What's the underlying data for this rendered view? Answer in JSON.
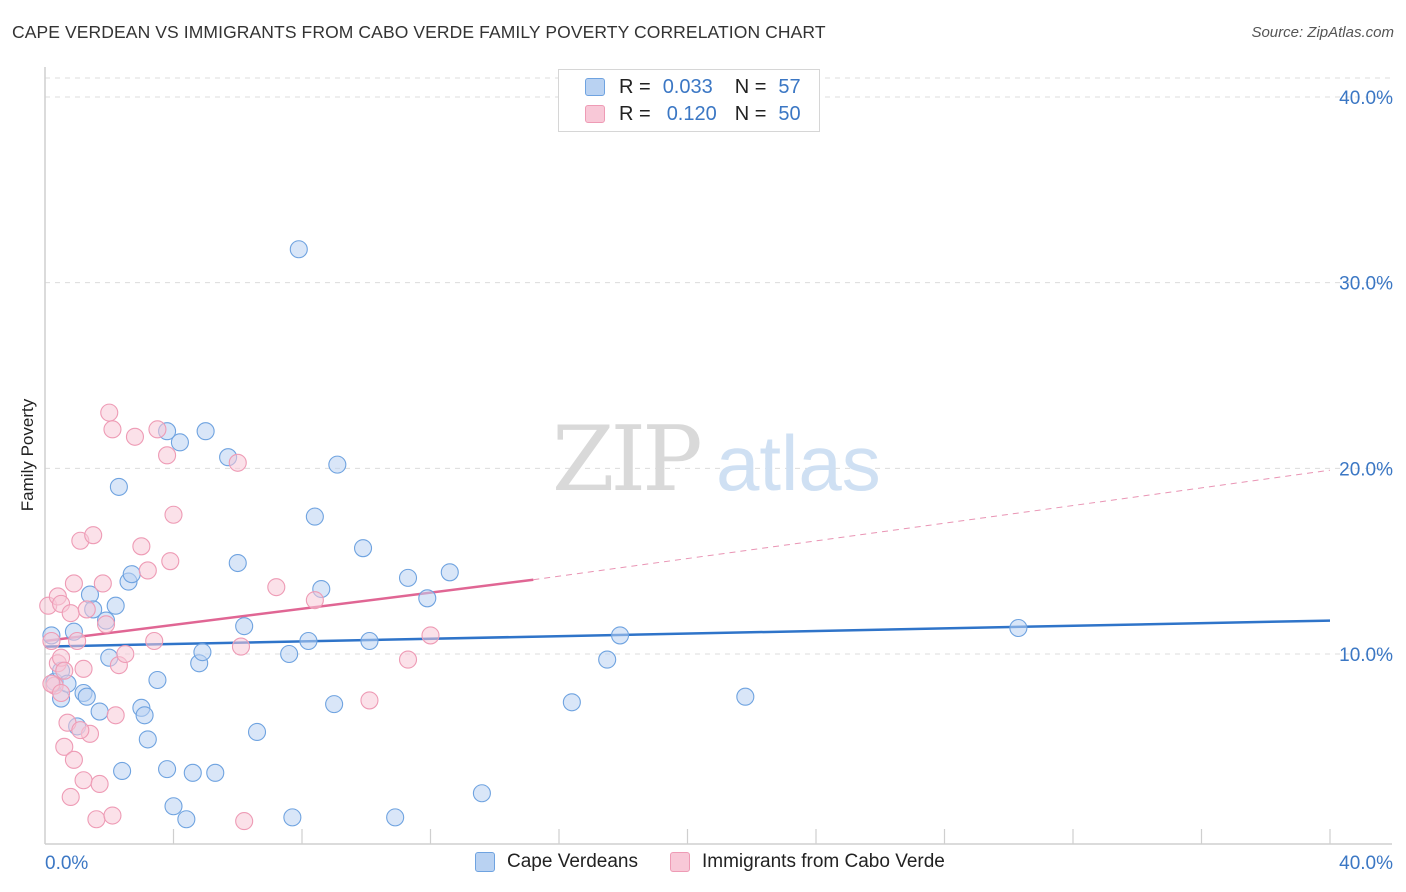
{
  "chart_data": {
    "type": "scatter",
    "title": "CAPE VERDEAN VS IMMIGRANTS FROM CABO VERDE FAMILY POVERTY CORRELATION CHART",
    "source": "Source: ZipAtlas.com",
    "xlabel": "",
    "ylabel": "Family Poverty",
    "xlim": [
      0,
      40
    ],
    "ylim": [
      0,
      42
    ],
    "x_tick_labels": [
      "0.0%",
      "40.0%"
    ],
    "y_ticks": [
      10,
      20,
      30,
      40
    ],
    "y_tick_labels": [
      "10.0%",
      "20.0%",
      "30.0%",
      "40.0%"
    ],
    "grid": true,
    "watermark": "ZIPatlas",
    "legend_top": [
      {
        "r_label": "R =",
        "r_value": "0.033",
        "n_label": "N =",
        "n_value": "57"
      },
      {
        "r_label": "R =",
        "r_value": "0.120",
        "n_label": "N =",
        "n_value": "50"
      }
    ],
    "series": [
      {
        "name": "Cape Verdeans",
        "color": "#6fa3e0",
        "fill": "#b9d2f2",
        "line_color": "#2f74c9",
        "trend": {
          "x0": 0,
          "y0": 10.4,
          "x1": 40,
          "y1": 11.8
        },
        "points": [
          [
            0.2,
            11.0
          ],
          [
            0.3,
            8.5
          ],
          [
            0.5,
            9.1
          ],
          [
            0.5,
            7.6
          ],
          [
            0.7,
            8.4
          ],
          [
            0.9,
            11.2
          ],
          [
            1.0,
            6.1
          ],
          [
            1.2,
            7.9
          ],
          [
            1.3,
            7.7
          ],
          [
            1.4,
            13.2
          ],
          [
            1.5,
            12.4
          ],
          [
            1.7,
            6.9
          ],
          [
            1.9,
            11.8
          ],
          [
            2.0,
            9.8
          ],
          [
            2.2,
            12.6
          ],
          [
            2.3,
            19.0
          ],
          [
            2.4,
            3.7
          ],
          [
            2.6,
            13.9
          ],
          [
            2.7,
            14.3
          ],
          [
            3.0,
            7.1
          ],
          [
            3.1,
            6.7
          ],
          [
            3.2,
            5.4
          ],
          [
            3.5,
            8.6
          ],
          [
            3.8,
            3.8
          ],
          [
            4.0,
            1.8
          ],
          [
            3.8,
            22.0
          ],
          [
            4.2,
            21.4
          ],
          [
            4.4,
            1.1
          ],
          [
            4.6,
            3.6
          ],
          [
            4.8,
            9.5
          ],
          [
            4.9,
            10.1
          ],
          [
            5.0,
            22.0
          ],
          [
            5.3,
            3.6
          ],
          [
            5.7,
            20.6
          ],
          [
            6.0,
            14.9
          ],
          [
            6.2,
            11.5
          ],
          [
            6.6,
            5.8
          ],
          [
            7.6,
            10.0
          ],
          [
            7.7,
            1.2
          ],
          [
            7.9,
            31.8
          ],
          [
            8.2,
            10.7
          ],
          [
            8.4,
            17.4
          ],
          [
            8.6,
            13.5
          ],
          [
            9.0,
            7.3
          ],
          [
            9.1,
            20.2
          ],
          [
            9.9,
            15.7
          ],
          [
            10.1,
            10.7
          ],
          [
            10.9,
            1.2
          ],
          [
            11.3,
            14.1
          ],
          [
            11.9,
            13.0
          ],
          [
            12.6,
            14.4
          ],
          [
            13.6,
            2.5
          ],
          [
            16.4,
            7.4
          ],
          [
            17.5,
            9.7
          ],
          [
            17.9,
            11.0
          ],
          [
            21.8,
            7.7
          ],
          [
            30.3,
            11.4
          ]
        ]
      },
      {
        "name": "Immigrants from Cabo Verde",
        "color": "#ee9bb5",
        "fill": "#f8c8d7",
        "line_color": "#e06694",
        "trend": {
          "x0": 0,
          "y0": 10.7,
          "x1": 15.2,
          "y1": 14.0,
          "dash_x1": 40,
          "dash_y1": 19.9
        },
        "points": [
          [
            0.1,
            12.6
          ],
          [
            0.2,
            10.7
          ],
          [
            0.3,
            8.3
          ],
          [
            0.4,
            9.5
          ],
          [
            0.4,
            13.1
          ],
          [
            0.5,
            12.7
          ],
          [
            0.5,
            9.8
          ],
          [
            0.6,
            5.0
          ],
          [
            0.7,
            6.3
          ],
          [
            0.8,
            2.3
          ],
          [
            0.8,
            12.2
          ],
          [
            0.9,
            4.3
          ],
          [
            0.9,
            13.8
          ],
          [
            1.0,
            10.7
          ],
          [
            1.1,
            16.1
          ],
          [
            1.2,
            9.2
          ],
          [
            1.2,
            3.2
          ],
          [
            1.3,
            12.4
          ],
          [
            1.4,
            5.7
          ],
          [
            1.5,
            16.4
          ],
          [
            1.6,
            1.1
          ],
          [
            1.7,
            3.0
          ],
          [
            1.8,
            13.8
          ],
          [
            1.9,
            11.6
          ],
          [
            2.0,
            23.0
          ],
          [
            2.1,
            22.1
          ],
          [
            2.1,
            1.3
          ],
          [
            2.2,
            6.7
          ],
          [
            2.3,
            9.4
          ],
          [
            2.5,
            10.0
          ],
          [
            2.8,
            21.7
          ],
          [
            3.0,
            15.8
          ],
          [
            3.2,
            14.5
          ],
          [
            3.4,
            10.7
          ],
          [
            3.5,
            22.1
          ],
          [
            3.8,
            20.7
          ],
          [
            3.9,
            15.0
          ],
          [
            4.0,
            17.5
          ],
          [
            6.0,
            20.3
          ],
          [
            6.1,
            10.4
          ],
          [
            6.2,
            1.0
          ],
          [
            7.2,
            13.6
          ],
          [
            8.4,
            12.9
          ],
          [
            10.1,
            7.5
          ],
          [
            11.3,
            9.7
          ],
          [
            12.0,
            11.0
          ],
          [
            0.2,
            8.4
          ],
          [
            0.6,
            9.1
          ],
          [
            0.5,
            7.9
          ],
          [
            1.1,
            5.9
          ]
        ]
      }
    ]
  },
  "legend_bottom": [
    {
      "label": "Cape Verdeans",
      "color": "#b9d2f2",
      "border": "#6fa3e0"
    },
    {
      "label": "Immigrants from Cabo Verde",
      "color": "#f8c8d7",
      "border": "#ee9bb5"
    }
  ]
}
